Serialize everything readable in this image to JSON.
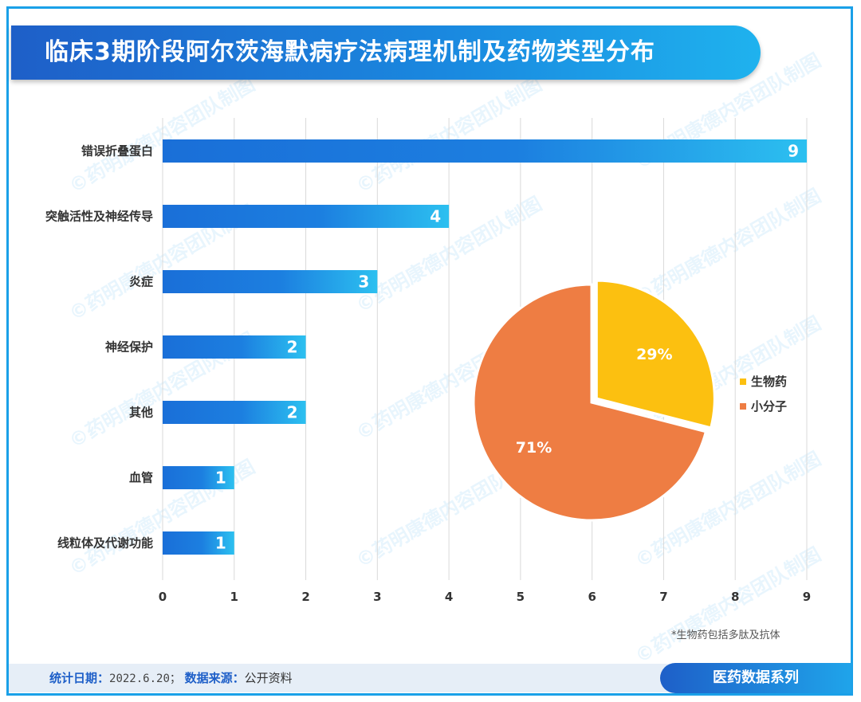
{
  "title": "临床3期阶段阿尔茨海默病疗法病理机制及药物类型分布",
  "watermark_text": "©药明康德内容团队制图",
  "footnote": "*生物药包括多肽及抗体",
  "footer": {
    "date_label": "统计日期：",
    "date_value": "2022.6.20；",
    "source_label": "数据来源：",
    "source_value": "公开资料",
    "series_label": "医药数据系列"
  },
  "colors": {
    "bar_dark": "#1a6fd8",
    "bar_light": "#2cc0f0",
    "pie_bio": "#fcc010",
    "pie_small": "#ee7d43",
    "grid": "#d9d9d9"
  },
  "chart_data": [
    {
      "type": "bar",
      "orientation": "horizontal",
      "categories": [
        "错误折叠蛋白",
        "突触活性及神经传导",
        "炎症",
        "神经保护",
        "其他",
        "血管",
        "线粒体及代谢功能"
      ],
      "values": [
        9,
        4,
        3,
        2,
        2,
        1,
        1
      ],
      "xlim": [
        0,
        9
      ],
      "xticks": [
        "0",
        "1",
        "2",
        "3",
        "4",
        "5",
        "6",
        "7",
        "8",
        "9"
      ],
      "grid": "vertical"
    },
    {
      "type": "pie",
      "labels": [
        "生物药",
        "小分子"
      ],
      "values": [
        29,
        71
      ],
      "data_labels": [
        "29%",
        "71%"
      ],
      "legend": "right"
    }
  ]
}
